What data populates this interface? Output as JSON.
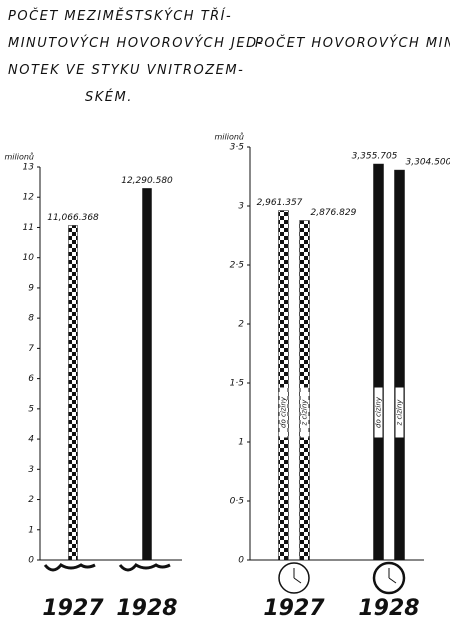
{
  "chart_data": [
    {
      "type": "bar",
      "title": [
        "POČET MEZIMĚSTSKÝCH TŘÍ-",
        "MINUTOVÝCH HOVOROVÝCH JED-",
        "NOTEK VE STYKU VNITROZEM-",
        "SKÉM."
      ],
      "ylabel": "milionů",
      "categories": [
        "1927",
        "1928"
      ],
      "patterns": [
        "checker",
        "solid"
      ],
      "values": [
        11.066368,
        12.29058
      ],
      "value_labels": [
        "11,066.368",
        "12,290.580"
      ],
      "color": "#111111",
      "ylim": [
        0,
        13
      ],
      "yticks": [
        0,
        1,
        2,
        3,
        4,
        5,
        6,
        7,
        8,
        9,
        10,
        11,
        12,
        13
      ]
    },
    {
      "type": "grouped-bar",
      "title": [
        "POČET HOVOROVÝCH MINUT"
      ],
      "ylabel": "milionů",
      "categories": [
        "1927",
        "1928"
      ],
      "patterns": [
        "checker",
        "solid"
      ],
      "series": [
        {
          "name": "do ciziny",
          "color": "#111111",
          "values": [
            2.961357,
            3.355705
          ],
          "value_labels": [
            "2,961.357",
            "3,355.705"
          ]
        },
        {
          "name": "z ciziny",
          "color": "#111111",
          "values": [
            2.876829,
            3.3045
          ],
          "value_labels": [
            "2,876.829",
            "3,304.500"
          ]
        }
      ],
      "ylim": [
        0,
        3.5
      ],
      "yticks": [
        0,
        {
          "value": 0.5,
          "label": "0·5"
        },
        1,
        {
          "value": 1.5,
          "label": "1·5"
        },
        2,
        {
          "value": 2.5,
          "label": "2·5"
        },
        3,
        {
          "value": 3.5,
          "label": "3·5"
        }
      ]
    }
  ]
}
